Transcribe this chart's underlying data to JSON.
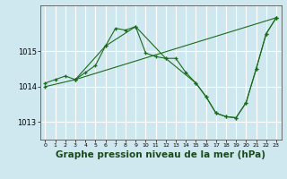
{
  "background_color": "#cfe8f0",
  "plot_bg_color": "#cfe8f0",
  "grid_color": "#ffffff",
  "line_color": "#1a6b1a",
  "xlabel": "Graphe pression niveau de la mer (hPa)",
  "xlabel_fontsize": 7.5,
  "xlabel_color": "#1a4a1a",
  "xlim": [
    -0.5,
    23.5
  ],
  "ylim": [
    1012.5,
    1016.3
  ],
  "yticks": [
    1013,
    1014,
    1015
  ],
  "xticks": [
    0,
    1,
    2,
    3,
    4,
    5,
    6,
    7,
    8,
    9,
    10,
    11,
    12,
    13,
    14,
    15,
    16,
    17,
    18,
    19,
    20,
    21,
    22,
    23
  ],
  "line1_x": [
    0,
    1,
    2,
    3,
    4,
    5,
    6,
    7,
    8,
    9,
    10,
    11,
    12,
    13,
    14,
    15,
    16,
    17,
    18,
    19,
    20,
    21,
    22,
    23
  ],
  "line1_y": [
    1014.1,
    1014.2,
    1014.3,
    1014.2,
    1014.4,
    1014.6,
    1015.15,
    1015.65,
    1015.6,
    1015.7,
    1014.95,
    1014.85,
    1014.8,
    1014.8,
    1014.4,
    1014.1,
    1013.72,
    1013.25,
    1013.15,
    1013.12,
    1013.55,
    1014.5,
    1015.5,
    1015.95
  ],
  "line2_x": [
    3,
    6,
    9,
    12,
    15,
    16,
    17,
    18,
    19,
    20,
    21,
    22,
    23
  ],
  "line2_y": [
    1014.2,
    1015.15,
    1015.7,
    1014.8,
    1014.1,
    1013.72,
    1013.25,
    1013.15,
    1013.12,
    1013.55,
    1014.5,
    1015.5,
    1015.95
  ],
  "line3_x": [
    0,
    3,
    23
  ],
  "line3_y": [
    1014.0,
    1014.2,
    1015.95
  ]
}
